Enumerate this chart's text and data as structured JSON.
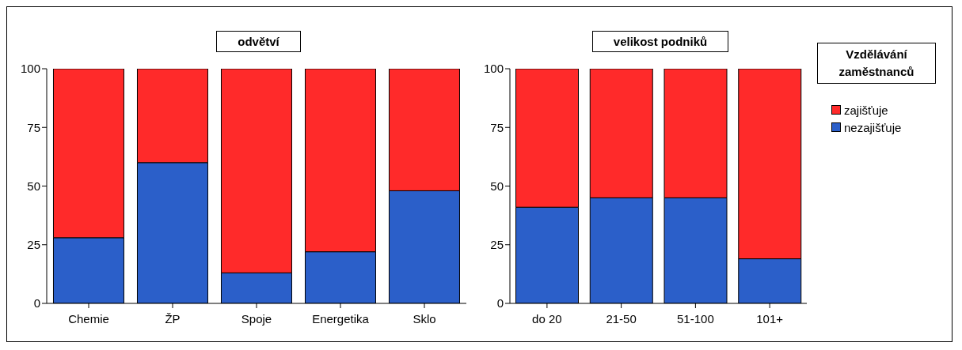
{
  "chart_data": [
    {
      "type": "bar",
      "title": "odvětví",
      "categories": [
        "Chemie",
        "ŽP",
        "Spoje",
        "Energetika",
        "Sklo"
      ],
      "stacked": true,
      "series": [
        {
          "color": "#2b5fc9",
          "values": [
            28,
            60,
            13,
            22,
            48
          ]
        },
        {
          "color": "#ff2a2a",
          "values": [
            72,
            40,
            87,
            78,
            52
          ]
        }
      ],
      "ylim": [
        0,
        100
      ],
      "yticks": [
        0,
        25,
        50,
        75,
        100
      ],
      "grid": false,
      "legend": false
    },
    {
      "type": "bar",
      "title": "velikost podniků",
      "categories": [
        "do 20",
        "21-50",
        "51-100",
        "101+"
      ],
      "stacked": true,
      "series": [
        {
          "name": "nezajišťuje",
          "color": "#2b5fc9",
          "values": [
            41,
            45,
            45,
            19
          ]
        },
        {
          "name": "zajišťuje",
          "color": "#ff2a2a",
          "values": [
            59,
            55,
            55,
            81
          ]
        }
      ],
      "ylim": [
        0,
        100
      ],
      "yticks": [
        0,
        25,
        50,
        75,
        100
      ],
      "grid": false,
      "legend": "right",
      "legend_title": "Vzdělávání zaměstnanců"
    }
  ]
}
